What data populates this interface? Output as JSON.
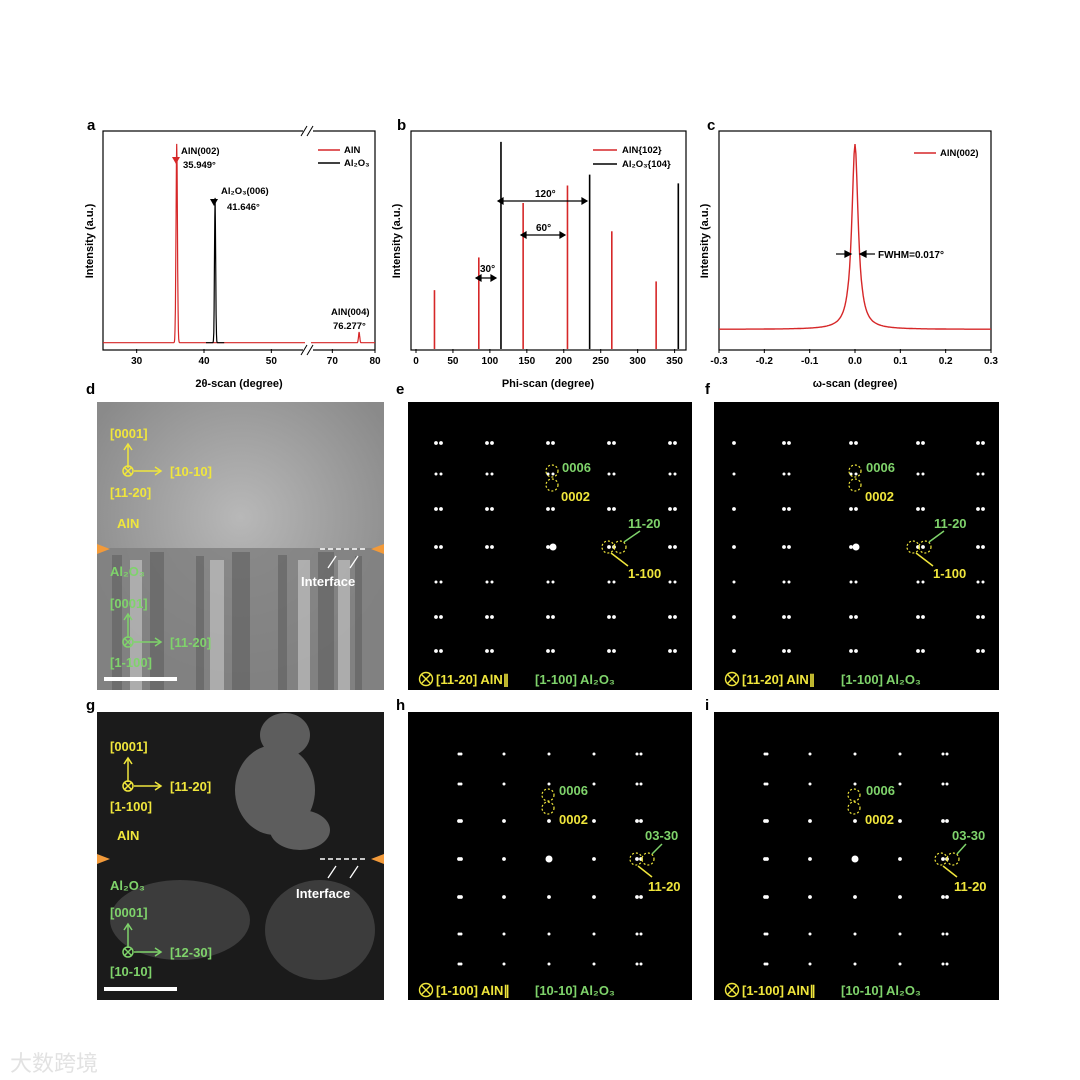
{
  "panel_letters": [
    "a",
    "b",
    "c",
    "d",
    "e",
    "f",
    "g",
    "h",
    "i"
  ],
  "panel_a": {
    "ylabel": "Intensity (a.u.)",
    "xlabel": "2θ-scan (degree)",
    "ticks": [
      "30",
      "40",
      "50",
      "70",
      "80"
    ],
    "legend": [
      "AlN",
      "Al₂O₃"
    ],
    "peak1": [
      "AlN(002)",
      "35.949°"
    ],
    "peak2": [
      "Al₂O₃(006)",
      "41.646°"
    ],
    "peak3": [
      "AlN(004)",
      "76.277°"
    ]
  },
  "panel_b": {
    "ylabel": "Intensity (a.u.)",
    "xlabel": "Phi-scan (degree)",
    "ticks": [
      "0",
      "50",
      "100",
      "150",
      "200",
      "250",
      "300",
      "350"
    ],
    "legend": [
      "AlN{102}",
      "Al₂O₃{104}"
    ],
    "ann_30": "30°",
    "ann_60": "60°",
    "ann_120": "120°"
  },
  "panel_c": {
    "ylabel": "Intensity (a.u.)",
    "xlabel": "ω-scan (degree)",
    "ticks": [
      "-0.3",
      "-0.2",
      "-0.1",
      "0.0",
      "0.1",
      "0.2",
      "0.3"
    ],
    "legend": [
      "AlN(002)"
    ],
    "fwhm": "FWHM=0.017°"
  },
  "chart_data": [
    {
      "type": "line",
      "xlabel": "2θ-scan (degree)",
      "ylabel": "Intensity (a.u.)",
      "xlim": [
        25,
        80
      ],
      "axis_break": [
        55,
        65
      ],
      "series": [
        {
          "name": "AlN",
          "color": "#d62728",
          "peaks": [
            {
              "x": 35.949,
              "y": 0.96
            },
            {
              "x": 76.277,
              "y": 0.05
            }
          ]
        },
        {
          "name": "Al2O3",
          "color": "#000000",
          "peaks": [
            {
              "x": 41.646,
              "y": 0.7
            }
          ]
        }
      ]
    },
    {
      "type": "bar",
      "xlabel": "Phi-scan (degree)",
      "ylabel": "Intensity (a.u.)",
      "xlim": [
        0,
        360
      ],
      "series": [
        {
          "name": "AlN{102}",
          "color": "#d62728",
          "x": [
            25,
            85,
            145,
            205,
            265,
            325
          ],
          "values": [
            0.27,
            0.42,
            0.67,
            0.75,
            0.54,
            0.31
          ]
        },
        {
          "name": "Al2O3{104}",
          "color": "#000000",
          "x": [
            115,
            235,
            355
          ],
          "values": [
            0.95,
            0.8,
            0.76
          ]
        }
      ]
    },
    {
      "type": "line",
      "xlabel": "ω-scan (degree)",
      "ylabel": "Intensity (a.u.)",
      "xlim": [
        -0.3,
        0.3
      ],
      "series": [
        {
          "name": "AlN(002)",
          "color": "#d62728",
          "peak_x": 0.0,
          "fwhm": 0.017
        }
      ]
    }
  ],
  "panel_d": {
    "zone_axis_top": [
      "[0001]",
      "[10-10]",
      "[11-20]"
    ],
    "layer_top": "AlN",
    "layer_bottom": "Al₂O₃",
    "zone_axis_bottom": [
      "[0001]",
      "[11-20]",
      "[1-100]"
    ],
    "interface": "Interface"
  },
  "panel_g": {
    "zone_axis_top": [
      "[0001]",
      "[11-20]",
      "[1-100]"
    ],
    "layer_top": "AlN",
    "layer_bottom": "Al₂O₃",
    "zone_axis_bottom": [
      "[0001]",
      "[12-30]",
      "[10-10]"
    ],
    "interface": "Interface"
  },
  "panel_ef": {
    "spot_top": [
      "0006",
      "0002"
    ],
    "spot_right": [
      "11-20",
      "1-100"
    ],
    "caption_yellow": "[11-20] AlN∥",
    "caption_green": "[1-100] Al₂O₃"
  },
  "panel_hi": {
    "spot_top": [
      "0006",
      "0002"
    ],
    "spot_right": [
      "03-30",
      "11-20"
    ],
    "caption_yellow": "[1-100] AlN∥",
    "caption_green": "[10-10] Al₂O₃"
  },
  "watermark": "大数跨境",
  "colors": {
    "red": "#d62728",
    "black": "#000000",
    "yellow": "#f0e63c",
    "green": "#7fd36b"
  }
}
